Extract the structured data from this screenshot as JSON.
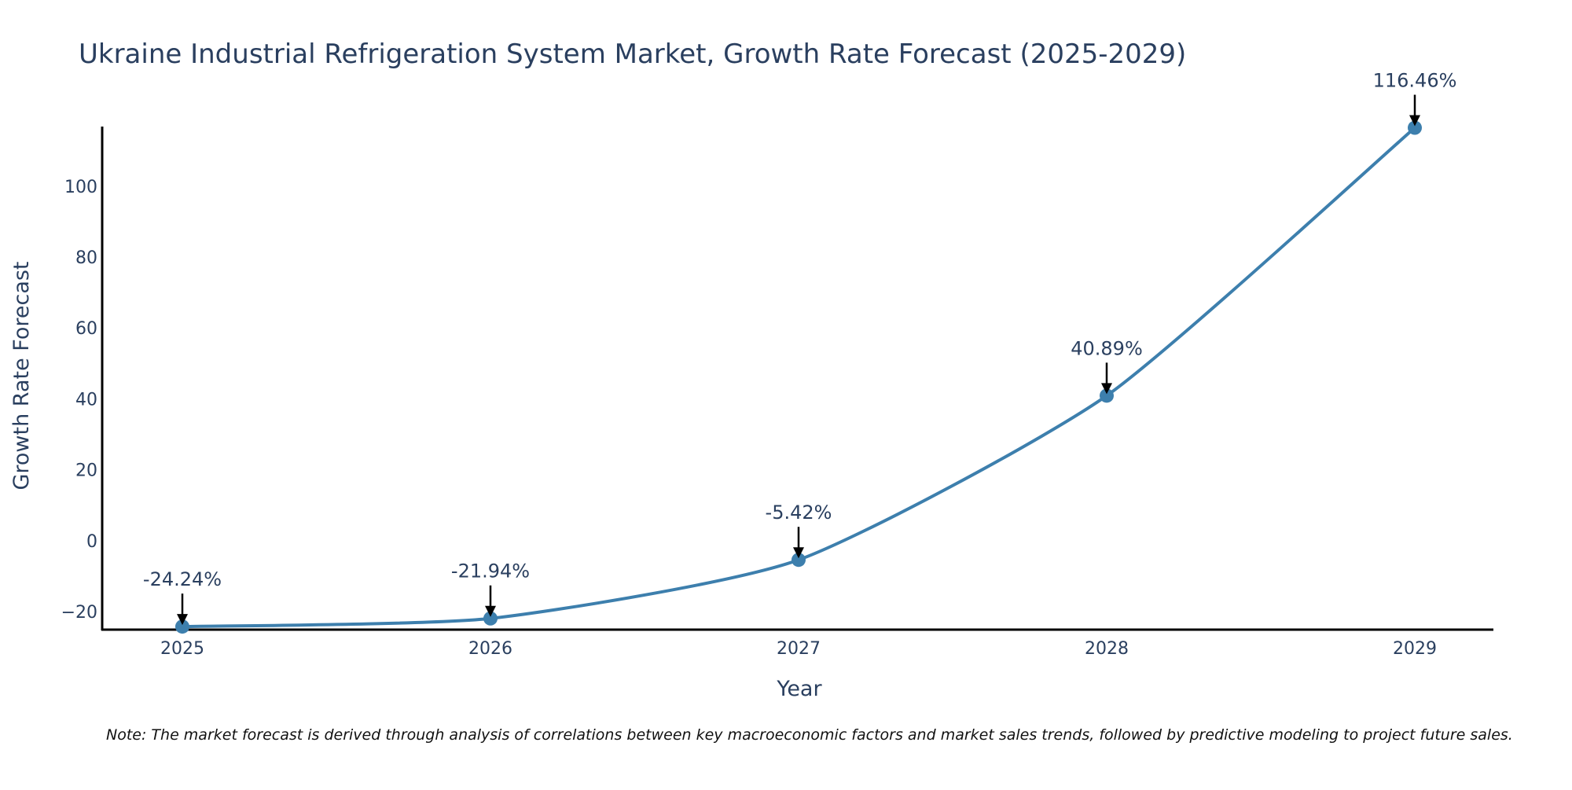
{
  "colors": {
    "line": "#3d7fad",
    "marker": "#3d7fad",
    "axis": "#000000",
    "text": "#2a3f5f",
    "arrow": "#000000"
  },
  "chart_data": {
    "type": "line",
    "title": "Ukraine Industrial Refrigeration System Market, Growth Rate Forecast (2025-2029)",
    "xlabel": "Year",
    "ylabel": "Growth Rate Forecast",
    "categories": [
      "2025",
      "2026",
      "2027",
      "2028",
      "2029"
    ],
    "series": [
      {
        "name": "Growth Rate Forecast",
        "values": [
          -24.24,
          -21.94,
          -5.42,
          40.89,
          116.46
        ]
      }
    ],
    "data_labels": [
      "-24.24%",
      "-21.94%",
      "-5.42%",
      "40.89%",
      "116.46%"
    ],
    "ylim": [
      -25.1,
      116.8
    ],
    "yticks": [
      -20,
      0,
      20,
      40,
      60,
      80,
      100
    ],
    "ytick_labels": [
      "−20",
      "0",
      "20",
      "40",
      "60",
      "80",
      "100"
    ],
    "grid": false,
    "legend": "none"
  },
  "note": "Note: The market forecast is derived through analysis of correlations between key macroeconomic factors and market sales trends, followed by predictive modeling to project future sales."
}
